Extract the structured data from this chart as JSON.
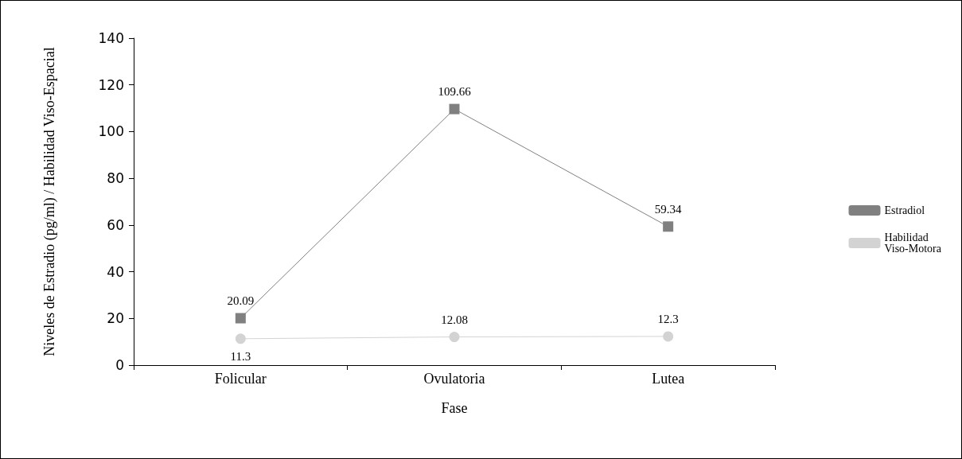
{
  "chart_data": {
    "type": "line",
    "xlabel": "Fase",
    "ylabel": "Niveles de Estradio (pg/ml) / Habilidad Viso-Espacial",
    "categories": [
      "Folicular",
      "Ovulatoria",
      "Lutea"
    ],
    "series": [
      {
        "name": "Estradiol",
        "color": "#808080",
        "marker": "square",
        "values": [
          20.09,
          109.66,
          59.34
        ]
      },
      {
        "name": "Habilidad Viso-Motora",
        "color": "#d3d3d3",
        "marker": "circle",
        "values": [
          11.3,
          12.08,
          12.3
        ]
      }
    ],
    "ylim": [
      0,
      140
    ],
    "yticks": [
      0,
      20,
      40,
      60,
      80,
      100,
      120,
      140
    ],
    "data_labels": true,
    "legend": "right",
    "grid": false
  }
}
